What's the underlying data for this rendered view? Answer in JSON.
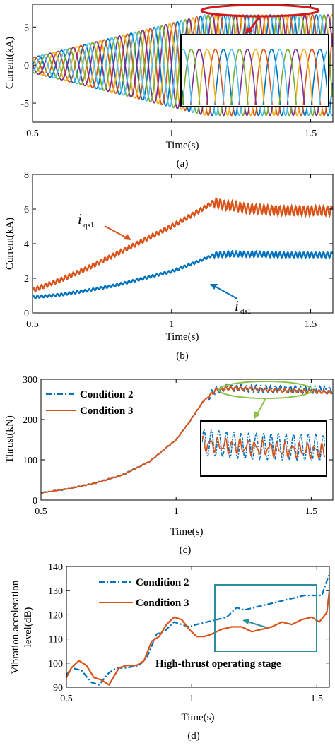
{
  "chart_data": [
    {
      "type": "line",
      "panel_label": "(a)",
      "xlabel": "Time(s)",
      "ylabel": "Current(kA)",
      "xlim": [
        0.5,
        1.58
      ],
      "ylim": [
        -7.5,
        8
      ],
      "xticks": [
        0.5,
        1,
        1.5
      ],
      "xtick_labels": [
        "0.5",
        "1",
        "1.5"
      ],
      "yticks": [
        -5,
        0,
        5
      ],
      "ytick_labels": [
        "-5",
        "0",
        "5"
      ],
      "description_values": {
        "waveform": "multiphase sinusoidal currents",
        "frequency_hz": 12,
        "phases": 6,
        "amplitude_start_kA": 1.0,
        "amplitude_ramp_end_kA": 6.6,
        "ramp_end_time_s": 1.12,
        "amplitude_final_kA": 6.6
      },
      "series_colors": [
        "#0072BD",
        "#D95319",
        "#EDB120",
        "#7E2F8E",
        "#77AC30",
        "#4DBEEE"
      ],
      "inset": {
        "border_color": "#000000",
        "highlight_color": "#d11a1a"
      }
    },
    {
      "type": "line",
      "panel_label": "(b)",
      "xlabel": "Time(s)",
      "ylabel": "Current(kA)",
      "xlim": [
        0.5,
        1.58
      ],
      "ylim": [
        0,
        8
      ],
      "xticks": [
        0.5,
        1,
        1.5
      ],
      "xtick_labels": [
        "0.5",
        "1",
        "1.5"
      ],
      "yticks": [
        0,
        2,
        4,
        6,
        8
      ],
      "ytick_labels": [
        "0",
        "2",
        "4",
        "6",
        "8"
      ],
      "series": [
        {
          "name": "i_qs1",
          "label_main": "i",
          "label_sub": "qs1",
          "color": "#D95319",
          "x": [
            0.5,
            0.6,
            0.7,
            0.8,
            0.9,
            1.0,
            1.1,
            1.15,
            1.2,
            1.3,
            1.4,
            1.5,
            1.58
          ],
          "y": [
            1.3,
            1.9,
            2.6,
            3.4,
            4.2,
            5.0,
            5.9,
            6.4,
            6.2,
            6.0,
            5.9,
            5.9,
            5.9
          ]
        },
        {
          "name": "i_ds1",
          "label_main": "i",
          "label_sub": "ds1",
          "color": "#0072BD",
          "x": [
            0.5,
            0.6,
            0.7,
            0.8,
            0.9,
            1.0,
            1.1,
            1.15,
            1.2,
            1.3,
            1.4,
            1.5,
            1.58
          ],
          "y": [
            0.9,
            1.05,
            1.3,
            1.6,
            2.0,
            2.4,
            3.0,
            3.35,
            3.4,
            3.4,
            3.35,
            3.35,
            3.35
          ]
        }
      ]
    },
    {
      "type": "line",
      "panel_label": "(c)",
      "xlabel": "Time(s)",
      "ylabel": "Thrust(kN)",
      "xlim": [
        0.5,
        1.58
      ],
      "ylim": [
        0,
        300
      ],
      "xticks": [
        0.5,
        1,
        1.5
      ],
      "xtick_labels": [
        "0.5",
        "1",
        "1.5"
      ],
      "yticks": [
        0,
        100,
        200,
        300
      ],
      "ytick_labels": [
        "0",
        "100",
        "200",
        "300"
      ],
      "legend": [
        "Condition 2",
        "Condition 3"
      ],
      "series": [
        {
          "name": "Condition 2",
          "color": "#0072BD",
          "style": "dash-dot",
          "x": [
            0.5,
            0.6,
            0.7,
            0.8,
            0.9,
            1.0,
            1.05,
            1.1,
            1.15,
            1.2,
            1.3,
            1.4,
            1.5,
            1.58
          ],
          "y": [
            18,
            28,
            42,
            62,
            95,
            150,
            195,
            245,
            275,
            280,
            276,
            275,
            274,
            273
          ]
        },
        {
          "name": "Condition 3",
          "color": "#D95319",
          "style": "solid",
          "x": [
            0.5,
            0.6,
            0.7,
            0.8,
            0.9,
            1.0,
            1.05,
            1.1,
            1.15,
            1.2,
            1.3,
            1.4,
            1.5,
            1.58
          ],
          "y": [
            18,
            28,
            42,
            62,
            95,
            150,
            195,
            245,
            275,
            278,
            275,
            272,
            270,
            268
          ]
        }
      ]
    },
    {
      "type": "line",
      "panel_label": "(d)",
      "xlabel": "Time(s)",
      "ylabel_line1": "Vibration acceleration",
      "ylabel_line2": "level(dB)",
      "xlim": [
        0.5,
        1.55
      ],
      "ylim": [
        90,
        140
      ],
      "xticks": [
        0.5,
        1,
        1.5
      ],
      "xtick_labels": [
        "0.5",
        "1",
        "1.5"
      ],
      "yticks": [
        90,
        100,
        110,
        120,
        130,
        140
      ],
      "ytick_labels": [
        "90",
        "100",
        "110",
        "120",
        "130",
        "140"
      ],
      "legend": [
        "Condition 2",
        "Condition 3"
      ],
      "annotation": "High-thrust operating stage",
      "box_color": "#2a8f9a",
      "series": [
        {
          "name": "Condition 2",
          "color": "#0072BD",
          "style": "dash-dot",
          "x": [
            0.5,
            0.52,
            0.56,
            0.6,
            0.63,
            0.67,
            0.7,
            0.74,
            0.79,
            0.82,
            0.86,
            0.89,
            0.93,
            0.96,
            0.99,
            1.02,
            1.06,
            1.1,
            1.14,
            1.18,
            1.21,
            1.25,
            1.29,
            1.33,
            1.37,
            1.41,
            1.45,
            1.49,
            1.52,
            1.55
          ],
          "y": [
            95,
            98,
            97,
            92,
            91,
            96,
            98,
            98,
            99,
            102,
            112,
            113,
            117,
            116,
            115,
            116,
            117,
            118,
            119,
            123,
            122,
            123,
            124,
            125,
            126,
            127,
            128,
            128,
            128,
            137
          ]
        },
        {
          "name": "Condition 3",
          "color": "#D95319",
          "style": "solid",
          "x": [
            0.5,
            0.52,
            0.55,
            0.58,
            0.61,
            0.64,
            0.67,
            0.71,
            0.74,
            0.78,
            0.81,
            0.84,
            0.87,
            0.9,
            0.93,
            0.96,
            0.99,
            1.02,
            1.05,
            1.08,
            1.12,
            1.16,
            1.2,
            1.24,
            1.28,
            1.32,
            1.36,
            1.4,
            1.44,
            1.48,
            1.51,
            1.54,
            1.55
          ],
          "y": [
            94,
            98,
            101,
            99,
            94,
            93,
            91,
            98,
            99,
            99,
            101,
            109,
            111,
            116,
            119,
            118,
            114,
            111,
            111,
            112,
            114,
            115,
            115,
            113,
            114,
            115,
            117,
            116,
            118,
            119,
            117,
            121,
            130
          ]
        }
      ]
    }
  ]
}
